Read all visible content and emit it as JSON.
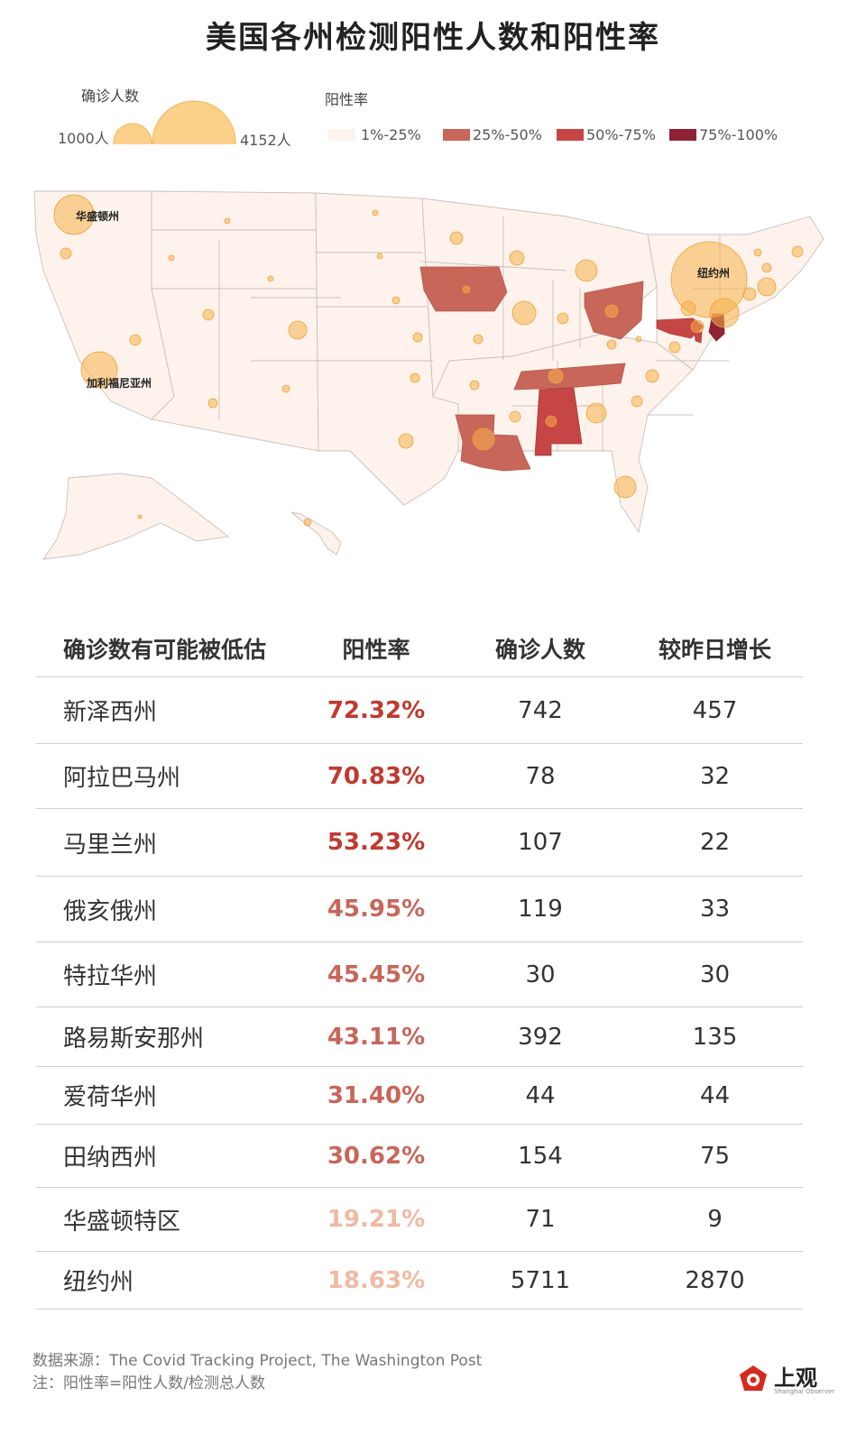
{
  "title": "美国各州检测阳性人数和阳性率",
  "legend": {
    "cases_label": "确诊人数",
    "size_small": "1000人",
    "size_large": "4152人",
    "rate_label": "阳性率",
    "rate_bins": [
      {
        "label": "1%-25%",
        "color": "#fdf3ec"
      },
      {
        "label": "25%-50%",
        "color": "#c9665a"
      },
      {
        "label": "50%-75%",
        "color": "#c64545"
      },
      {
        "label": "75%-100%",
        "color": "#8e2336"
      }
    ]
  },
  "map": {
    "labels": {
      "washington": "华盛顿州",
      "california": "加利福尼亚州",
      "newyork": "纽约州"
    }
  },
  "table": {
    "headers": [
      "确诊数有可能被低估",
      "阳性率",
      "确诊人数",
      "较昨日增长"
    ],
    "rows": [
      {
        "state": "新泽西州",
        "rate": "72.32%",
        "cases": "742",
        "increase": "457",
        "rate_color": "#c0392f"
      },
      {
        "state": "阿拉巴马州",
        "rate": "70.83%",
        "cases": "78",
        "increase": "32",
        "rate_color": "#c0392f"
      },
      {
        "state": "马里兰州",
        "rate": "53.23%",
        "cases": "107",
        "increase": "22",
        "rate_color": "#c0392f"
      },
      {
        "state": "俄亥俄州",
        "rate": "45.95%",
        "cases": "119",
        "increase": "33",
        "rate_color": "#c8665a"
      },
      {
        "state": "特拉华州",
        "rate": "45.45%",
        "cases": "30",
        "increase": "30",
        "rate_color": "#c8665a"
      },
      {
        "state": "路易斯安那州",
        "rate": "43.11%",
        "cases": "392",
        "increase": "135",
        "rate_color": "#c8665a"
      },
      {
        "state": "爱荷华州",
        "rate": "31.40%",
        "cases": "44",
        "increase": "44",
        "rate_color": "#c8665a"
      },
      {
        "state": "田纳西州",
        "rate": "30.62%",
        "cases": "154",
        "increase": "75",
        "rate_color": "#c8665a"
      },
      {
        "state": "华盛顿特区",
        "rate": "19.21%",
        "cases": "71",
        "increase": "9",
        "rate_color": "#f1b9a2"
      },
      {
        "state": "纽约州",
        "rate": "18.63%",
        "cases": "5711",
        "increase": "2870",
        "rate_color": "#f1b9a2"
      }
    ]
  },
  "footer": {
    "source": "数据来源：The Covid Tracking Project, The Washington Post",
    "note": "注：阳性率=阳性人数/检测总人数"
  },
  "logo": {
    "name": "上观",
    "subtitle": "Shanghai Observer"
  }
}
